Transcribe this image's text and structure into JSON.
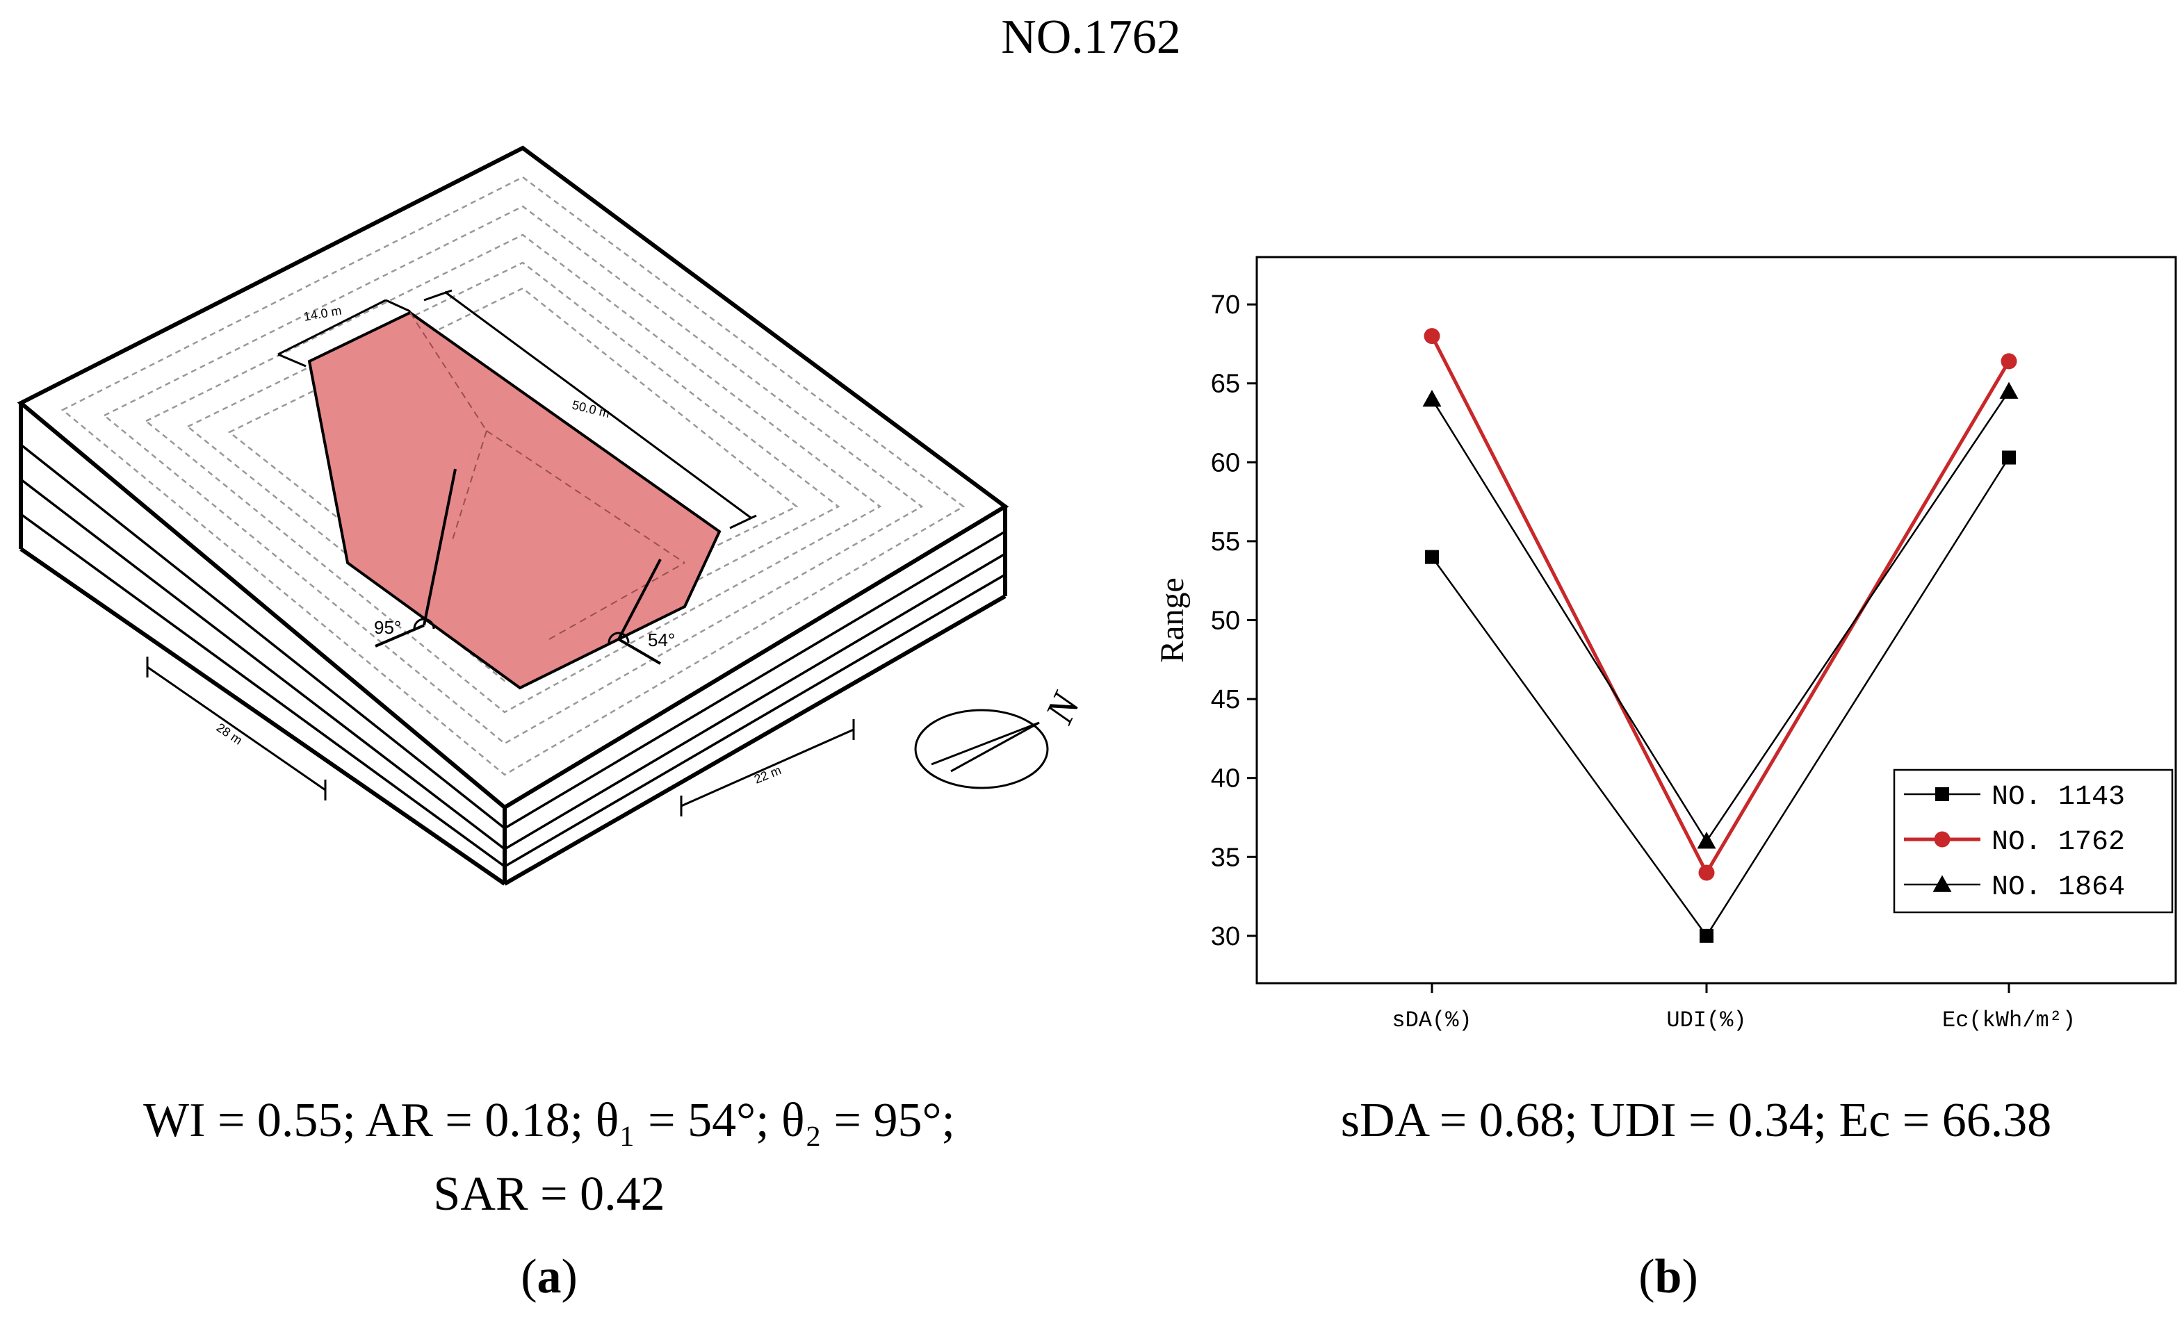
{
  "figure_title": "NO.1762",
  "panel_a": {
    "dimensions": {
      "width_top": "14.0 m",
      "length": "50.0 m",
      "side_left": "28 m",
      "side_right": "22 m"
    },
    "angles": {
      "left": "95°",
      "right": "54°"
    },
    "compass_label": "N",
    "params_line1": "WI = 0.55; AR = 0.18; θ₁ = 54°; θ₂ = 95°;",
    "params_line2": "SAR = 0.42",
    "label_letter": "a",
    "colors": {
      "atrium_fill": "#e5898a",
      "atrium_stroke": "#000000"
    }
  },
  "panel_b": {
    "params": "sDA = 0.68; UDI = 0.34; Ec = 66.38",
    "label_letter": "b"
  },
  "chart_data": {
    "type": "line",
    "categories": [
      "sDA(%)",
      "UDI(%)",
      "Ec(kWh/m²)"
    ],
    "ylabel": "Range",
    "xlabel": "",
    "ylim": [
      27,
      73
    ],
    "yticks": [
      30,
      35,
      40,
      45,
      50,
      55,
      60,
      65,
      70
    ],
    "legend_position": "bottom-right",
    "series": [
      {
        "name": "NO. 1143",
        "values": [
          54,
          30,
          60.3
        ],
        "marker": "square",
        "color": "#000000"
      },
      {
        "name": "NO. 1762",
        "values": [
          68,
          34,
          66.4
        ],
        "marker": "circle",
        "color": "#c8282a"
      },
      {
        "name": "NO. 1864",
        "values": [
          64,
          36,
          64.5
        ],
        "marker": "triangle",
        "color": "#000000"
      }
    ]
  }
}
